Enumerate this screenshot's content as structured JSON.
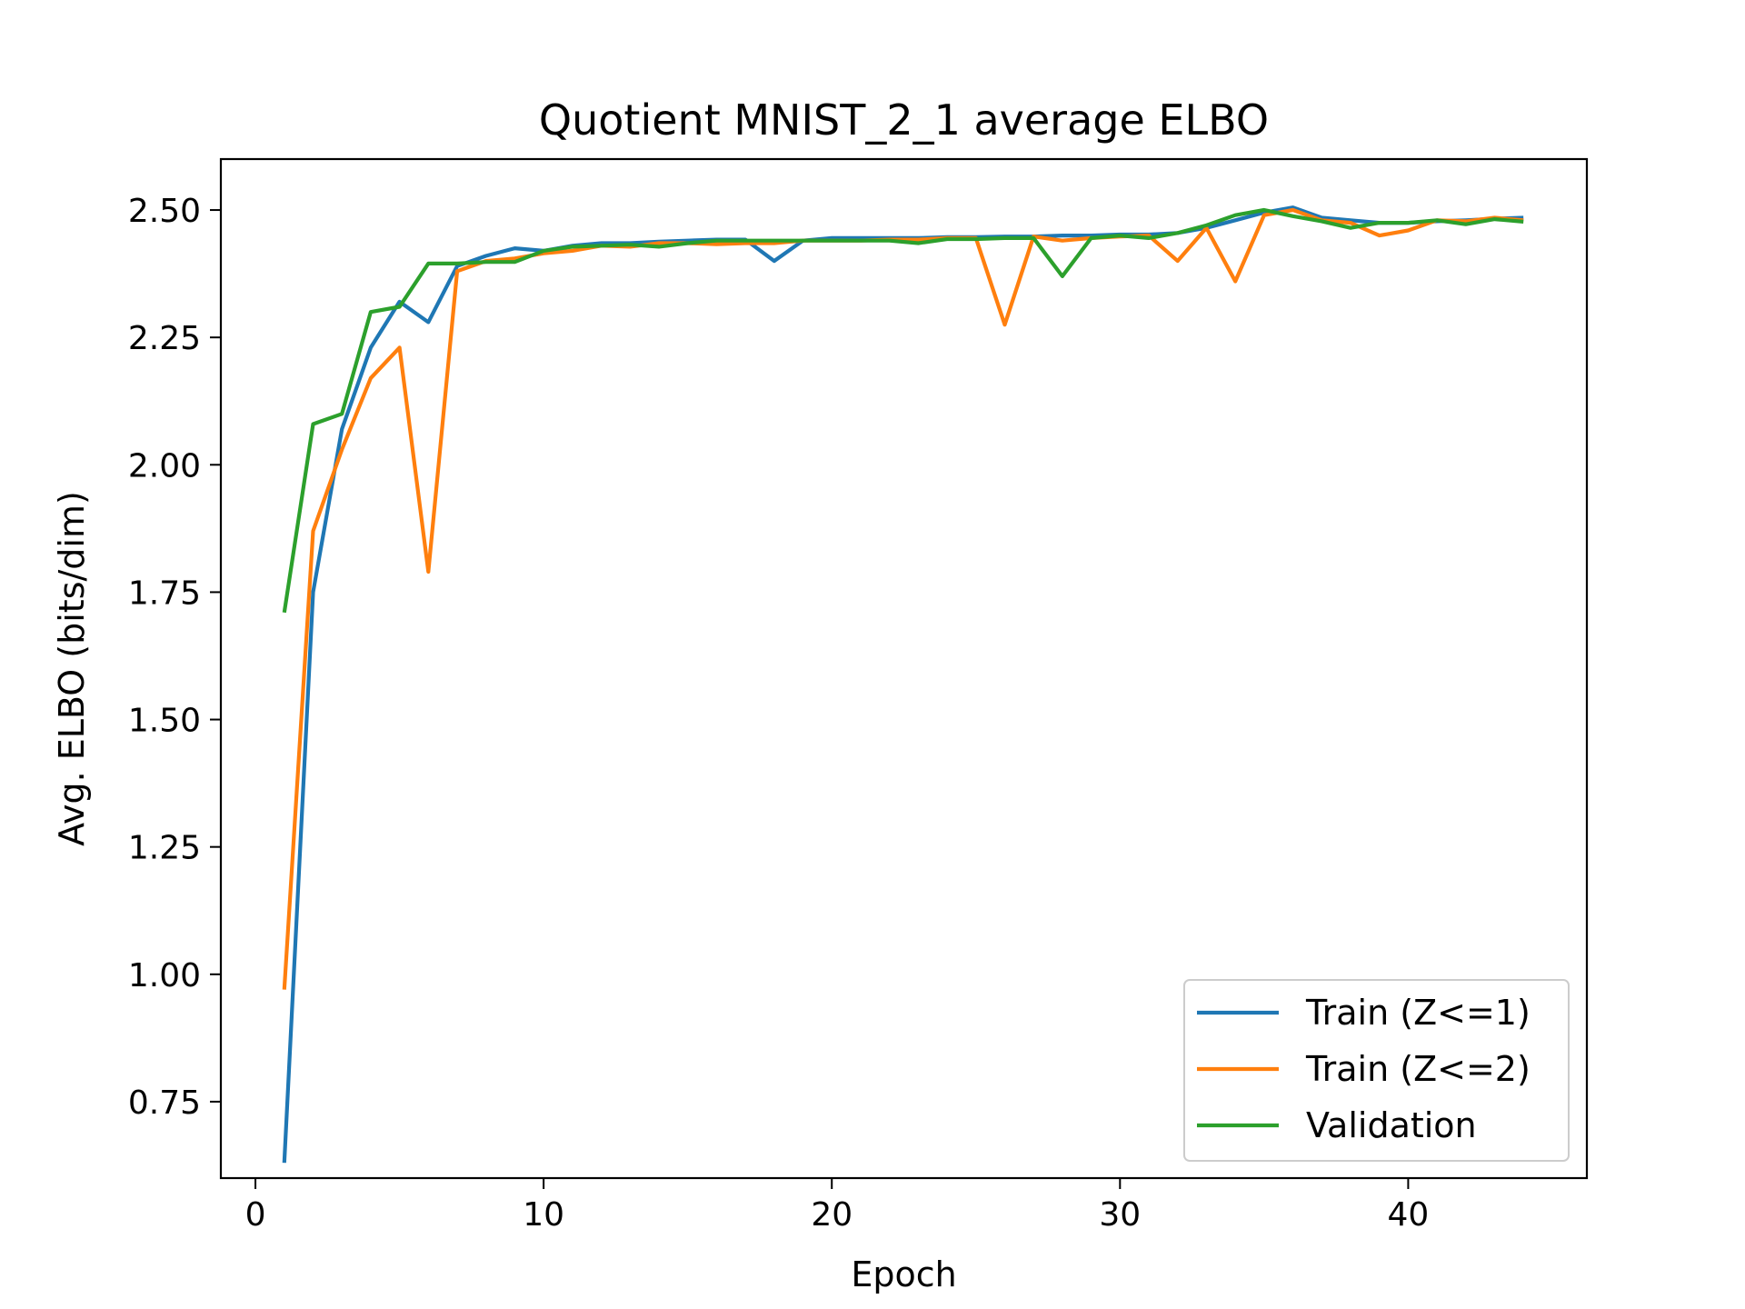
{
  "chart_data": {
    "type": "line",
    "title": "Quotient MNIST_2_1 average ELBO",
    "xlabel": "Epoch",
    "ylabel": "Avg. ELBO (bits/dim)",
    "xlim": [
      -1.2,
      46.2
    ],
    "ylim": [
      0.6,
      2.6
    ],
    "xticks": [
      0,
      10,
      20,
      30,
      40
    ],
    "xtick_labels": [
      "0",
      "10",
      "20",
      "30",
      "40"
    ],
    "yticks": [
      0.75,
      1.0,
      1.25,
      1.5,
      1.75,
      2.0,
      2.25,
      2.5
    ],
    "ytick_labels": [
      "0.75",
      "1.00",
      "1.25",
      "1.50",
      "1.75",
      "2.00",
      "2.25",
      "2.50"
    ],
    "grid": false,
    "legend_position": "bottom-right",
    "x": [
      1,
      2,
      3,
      4,
      5,
      6,
      7,
      8,
      9,
      10,
      11,
      12,
      13,
      14,
      15,
      16,
      17,
      18,
      19,
      20,
      21,
      22,
      23,
      24,
      25,
      26,
      27,
      28,
      29,
      30,
      31,
      32,
      33,
      34,
      35,
      36,
      37,
      38,
      39,
      40,
      41,
      42,
      43,
      44
    ],
    "series": [
      {
        "name": "Train (Z<=1)",
        "color": "#1f77b4",
        "values": [
          0.63,
          1.75,
          2.07,
          2.23,
          2.32,
          2.28,
          2.39,
          2.41,
          2.425,
          2.42,
          2.43,
          2.435,
          2.435,
          2.438,
          2.44,
          2.442,
          2.442,
          2.4,
          2.44,
          2.445,
          2.445,
          2.445,
          2.445,
          2.447,
          2.447,
          2.448,
          2.448,
          2.45,
          2.45,
          2.452,
          2.452,
          2.455,
          2.465,
          2.48,
          2.495,
          2.505,
          2.485,
          2.48,
          2.475,
          2.475,
          2.478,
          2.48,
          2.483,
          2.485
        ]
      },
      {
        "name": "Train (Z<=2)",
        "color": "#ff7f0e",
        "values": [
          0.97,
          1.87,
          2.03,
          2.17,
          2.23,
          1.79,
          2.38,
          2.4,
          2.405,
          2.415,
          2.42,
          2.43,
          2.428,
          2.435,
          2.435,
          2.433,
          2.435,
          2.435,
          2.44,
          2.44,
          2.44,
          2.442,
          2.442,
          2.445,
          2.445,
          2.275,
          2.448,
          2.44,
          2.445,
          2.448,
          2.45,
          2.4,
          2.465,
          2.36,
          2.49,
          2.5,
          2.48,
          2.475,
          2.45,
          2.46,
          2.48,
          2.478,
          2.485,
          2.48
        ]
      },
      {
        "name": "Validation",
        "color": "#2ca02c",
        "values": [
          1.71,
          2.08,
          2.1,
          2.3,
          2.31,
          2.395,
          2.395,
          2.398,
          2.398,
          2.42,
          2.428,
          2.43,
          2.432,
          2.428,
          2.435,
          2.44,
          2.44,
          2.44,
          2.44,
          2.44,
          2.44,
          2.44,
          2.435,
          2.443,
          2.443,
          2.445,
          2.445,
          2.37,
          2.445,
          2.45,
          2.445,
          2.455,
          2.47,
          2.49,
          2.5,
          2.488,
          2.478,
          2.465,
          2.475,
          2.475,
          2.48,
          2.472,
          2.482,
          2.477
        ]
      }
    ]
  }
}
